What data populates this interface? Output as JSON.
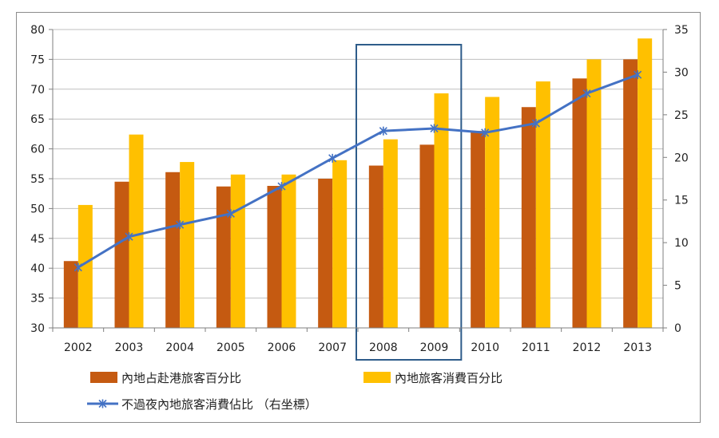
{
  "chart_data": {
    "type": "bar",
    "categories": [
      "2002",
      "2003",
      "2004",
      "2005",
      "2006",
      "2007",
      "2008",
      "2009",
      "2010",
      "2011",
      "2012",
      "2013"
    ],
    "series": [
      {
        "name": "內地占赴港旅客百分比",
        "kind": "bar",
        "axis": "left",
        "color": "#C55A11",
        "values": [
          41.2,
          54.5,
          56.1,
          53.7,
          53.8,
          55.0,
          57.2,
          60.7,
          63.0,
          67.0,
          71.8,
          75.0
        ]
      },
      {
        "name": "內地旅客消費百分比",
        "kind": "bar",
        "axis": "left",
        "color": "#FFC000",
        "values": [
          50.6,
          62.4,
          57.8,
          55.7,
          55.7,
          58.1,
          61.6,
          69.3,
          68.7,
          71.3,
          75.0,
          78.5
        ]
      },
      {
        "name": "不過夜內地旅客消費佔比 （右坐標）",
        "kind": "line",
        "axis": "right",
        "color": "#4472C4",
        "values": [
          7.1,
          10.7,
          12.1,
          13.4,
          16.6,
          19.9,
          23.1,
          23.4,
          22.9,
          24.0,
          27.5,
          29.7
        ]
      }
    ],
    "y_left": {
      "min": 30,
      "max": 80,
      "step": 5,
      "ticks": [
        "30",
        "35",
        "40",
        "45",
        "50",
        "55",
        "60",
        "65",
        "70",
        "75",
        "80"
      ]
    },
    "y_right": {
      "min": 0,
      "max": 35,
      "step": 5,
      "ticks": [
        "0",
        "5",
        "10",
        "15",
        "20",
        "25",
        "30",
        "35"
      ]
    },
    "grid": true,
    "highlight": {
      "categories": [
        "2008",
        "2009"
      ],
      "color": "#2E5C8A"
    },
    "legend_position": "bottom",
    "title": "",
    "xlabel": "",
    "ylabel": ""
  }
}
